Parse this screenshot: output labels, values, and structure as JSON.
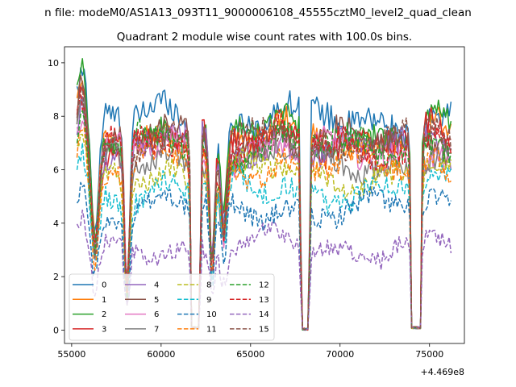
{
  "chart_data": {
    "type": "line",
    "suptitle": "n file: modeM0/AS1A13_093T11_9000006108_45555cztM0_level2_quad_clean",
    "title": "Quadrant 2 module wise count rates with 100.0s bins.",
    "xlabel": "",
    "ylabel": "",
    "x_offset_label": "+4.469e8",
    "x_range": [
      55300,
      76200
    ],
    "xlim": [
      54600,
      76950
    ],
    "ylim": [
      -0.5,
      10.6
    ],
    "x_ticks": [
      "55000",
      "60000",
      "65000",
      "70000",
      "75000"
    ],
    "x_tick_values": [
      55000,
      60000,
      65000,
      70000,
      75000
    ],
    "y_ticks": [
      "0",
      "2",
      "4",
      "6",
      "8",
      "10"
    ],
    "y_tick_values": [
      0,
      2,
      4,
      6,
      8,
      10
    ],
    "gaps": [
      [
        61700,
        62150,
        0.05
      ],
      [
        67850,
        68250,
        0.0
      ],
      [
        74000,
        74500,
        0.05
      ]
    ],
    "dips": [
      [
        56300,
        300,
        0.45
      ],
      [
        63500,
        250,
        0.55
      ],
      [
        62850,
        200,
        0.35
      ],
      [
        58100,
        200,
        0.2
      ]
    ],
    "legend_position": "lower-left",
    "series": [
      {
        "name": "0",
        "style": "solid",
        "color": "#1f77b4",
        "level": 7.8,
        "peak": 9.3
      },
      {
        "name": "1",
        "style": "solid",
        "color": "#ff7f0e",
        "level": 7.1,
        "peak": 8.7
      },
      {
        "name": "2",
        "style": "solid",
        "color": "#2ca02c",
        "level": 7.3,
        "peak": 9.8
      },
      {
        "name": "3",
        "style": "solid",
        "color": "#d62728",
        "level": 7.0,
        "peak": 9.0
      },
      {
        "name": "4",
        "style": "solid",
        "color": "#9467bd",
        "level": 6.8,
        "peak": 8.9
      },
      {
        "name": "5",
        "style": "solid",
        "color": "#8c564b",
        "level": 7.0,
        "peak": 10.1
      },
      {
        "name": "6",
        "style": "solid",
        "color": "#e377c2",
        "level": 6.6,
        "peak": 8.3
      },
      {
        "name": "7",
        "style": "solid",
        "color": "#7f7f7f",
        "level": 6.3,
        "peak": 8.4
      },
      {
        "name": "8",
        "style": "dashed",
        "color": "#bcbd22",
        "level": 5.8,
        "peak": 7.2
      },
      {
        "name": "9",
        "style": "dashed",
        "color": "#17becf",
        "level": 5.2,
        "peak": 6.4
      },
      {
        "name": "10",
        "style": "dashed",
        "color": "#1f77b4",
        "level": 4.5,
        "peak": 5.3
      },
      {
        "name": "11",
        "style": "dashed",
        "color": "#ff7f0e",
        "level": 6.1,
        "peak": 7.6
      },
      {
        "name": "12",
        "style": "dashed",
        "color": "#2ca02c",
        "level": 6.8,
        "peak": 8.1
      },
      {
        "name": "13",
        "style": "dashed",
        "color": "#d62728",
        "level": 6.9,
        "peak": 8.5
      },
      {
        "name": "14",
        "style": "dashed",
        "color": "#9467bd",
        "level": 3.1,
        "peak": 4.2
      },
      {
        "name": "15",
        "style": "dashed",
        "color": "#8c564b",
        "level": 7.0,
        "peak": 8.9
      }
    ]
  }
}
